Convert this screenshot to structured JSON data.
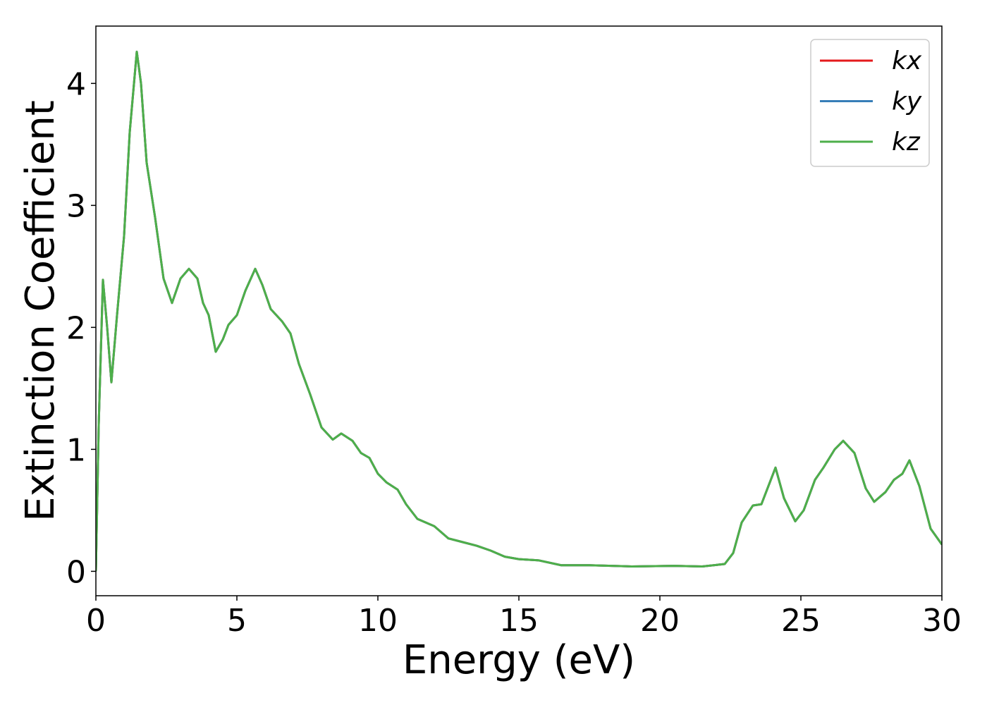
{
  "chart_data": {
    "type": "line",
    "xlabel": "Energy (eV)",
    "ylabel": "Extinction Coefficient",
    "x": [
      0,
      0.1,
      0.25,
      0.4,
      0.55,
      0.75,
      1.0,
      1.2,
      1.45,
      1.6,
      1.8,
      2.1,
      2.4,
      2.7,
      3.0,
      3.3,
      3.6,
      3.8,
      4.0,
      4.25,
      4.5,
      4.7,
      5.0,
      5.3,
      5.65,
      5.9,
      6.2,
      6.6,
      6.9,
      7.2,
      7.6,
      8.0,
      8.4,
      8.7,
      9.1,
      9.4,
      9.7,
      10.0,
      10.3,
      10.7,
      11.0,
      11.4,
      12.0,
      12.5,
      13.0,
      13.5,
      14.0,
      14.5,
      15.0,
      15.7,
      16.5,
      17.5,
      19.0,
      20.5,
      21.5,
      22.3,
      22.6,
      22.9,
      23.3,
      23.6,
      23.85,
      24.1,
      24.4,
      24.8,
      25.1,
      25.5,
      25.8,
      26.2,
      26.5,
      26.9,
      27.3,
      27.6,
      28.0,
      28.3,
      28.6,
      28.85,
      29.2,
      29.6,
      30.0
    ],
    "series": [
      {
        "name": "kx",
        "color": "#e41a1c",
        "values": [
          0,
          1.2,
          2.39,
          2.0,
          1.55,
          2.1,
          2.75,
          3.6,
          4.26,
          4.0,
          3.35,
          2.9,
          2.4,
          2.2,
          2.4,
          2.48,
          2.4,
          2.2,
          2.1,
          1.8,
          1.9,
          2.02,
          2.1,
          2.3,
          2.48,
          2.35,
          2.15,
          2.05,
          1.95,
          1.7,
          1.45,
          1.18,
          1.08,
          1.13,
          1.07,
          0.97,
          0.93,
          0.8,
          0.73,
          0.67,
          0.55,
          0.43,
          0.37,
          0.27,
          0.24,
          0.21,
          0.17,
          0.12,
          0.1,
          0.09,
          0.05,
          0.05,
          0.04,
          0.045,
          0.04,
          0.06,
          0.15,
          0.4,
          0.54,
          0.55,
          0.7,
          0.85,
          0.6,
          0.41,
          0.5,
          0.75,
          0.85,
          1.0,
          1.07,
          0.97,
          0.68,
          0.57,
          0.65,
          0.75,
          0.8,
          0.91,
          0.7,
          0.35,
          0.22
        ]
      },
      {
        "name": "ky",
        "color": "#377eb8",
        "values": [
          0,
          1.2,
          2.39,
          2.0,
          1.55,
          2.1,
          2.75,
          3.6,
          4.26,
          4.0,
          3.35,
          2.9,
          2.4,
          2.2,
          2.4,
          2.48,
          2.4,
          2.2,
          2.1,
          1.8,
          1.9,
          2.02,
          2.1,
          2.3,
          2.48,
          2.35,
          2.15,
          2.05,
          1.95,
          1.7,
          1.45,
          1.18,
          1.08,
          1.13,
          1.07,
          0.97,
          0.93,
          0.8,
          0.73,
          0.67,
          0.55,
          0.43,
          0.37,
          0.27,
          0.24,
          0.21,
          0.17,
          0.12,
          0.1,
          0.09,
          0.05,
          0.05,
          0.04,
          0.045,
          0.04,
          0.06,
          0.15,
          0.4,
          0.54,
          0.55,
          0.7,
          0.85,
          0.6,
          0.41,
          0.5,
          0.75,
          0.85,
          1.0,
          1.07,
          0.97,
          0.68,
          0.57,
          0.65,
          0.75,
          0.8,
          0.91,
          0.7,
          0.35,
          0.22
        ]
      },
      {
        "name": "kz",
        "color": "#4daf4a",
        "values": [
          0,
          1.2,
          2.39,
          2.0,
          1.55,
          2.1,
          2.75,
          3.6,
          4.26,
          4.0,
          3.35,
          2.9,
          2.4,
          2.2,
          2.4,
          2.48,
          2.4,
          2.2,
          2.1,
          1.8,
          1.9,
          2.02,
          2.1,
          2.3,
          2.48,
          2.35,
          2.15,
          2.05,
          1.95,
          1.7,
          1.45,
          1.18,
          1.08,
          1.13,
          1.07,
          0.97,
          0.93,
          0.8,
          0.73,
          0.67,
          0.55,
          0.43,
          0.37,
          0.27,
          0.24,
          0.21,
          0.17,
          0.12,
          0.1,
          0.09,
          0.05,
          0.05,
          0.04,
          0.045,
          0.04,
          0.06,
          0.15,
          0.4,
          0.54,
          0.55,
          0.7,
          0.85,
          0.6,
          0.41,
          0.5,
          0.75,
          0.85,
          1.0,
          1.07,
          0.97,
          0.68,
          0.57,
          0.65,
          0.75,
          0.8,
          0.91,
          0.7,
          0.35,
          0.22
        ]
      }
    ],
    "xlim": [
      0,
      30
    ],
    "xticks": [
      0,
      5,
      10,
      15,
      20,
      25,
      30
    ],
    "ylim": [
      -0.2,
      4.47
    ],
    "yticks": [
      0,
      1,
      2,
      3,
      4
    ],
    "grid": false,
    "legend": "upper right"
  }
}
